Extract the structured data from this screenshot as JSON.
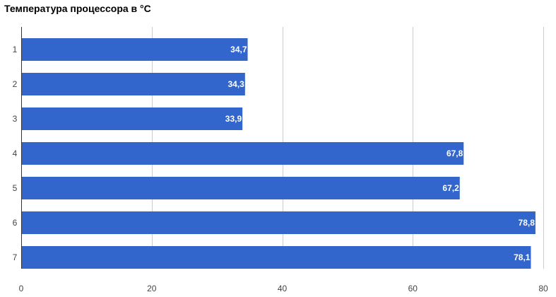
{
  "chart_data": {
    "type": "bar",
    "orientation": "horizontal",
    "title": "Температура процессора в °С",
    "categories": [
      "1",
      "2",
      "3",
      "4",
      "5",
      "6",
      "7"
    ],
    "values": [
      34.7,
      34.3,
      33.9,
      67.8,
      67.2,
      78.8,
      78.1
    ],
    "data_labels": [
      "34,7",
      "34,3",
      "33,9",
      "67,8",
      "67,2",
      "78,8",
      "78,1"
    ],
    "x_ticks": [
      0,
      20,
      40,
      60,
      80
    ],
    "xlim": [
      0,
      80
    ],
    "xlabel": "",
    "ylabel": "",
    "grid": true,
    "legend": "none",
    "colors": {
      "bar": "#3366cc",
      "grid": "#cccccc",
      "axis": "#333333",
      "data_label": "#ffffff"
    }
  }
}
